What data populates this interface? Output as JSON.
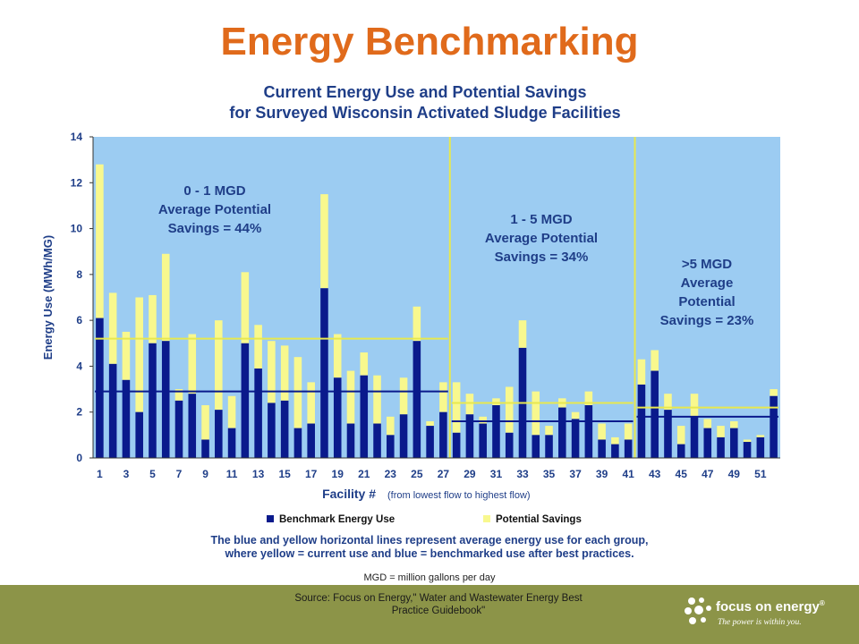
{
  "slide": {
    "title": "Energy Benchmarking",
    "note": "MGD = million gallons per day",
    "source_line1": "Source: Focus on Energy,\" Water and Wastewater Energy Best",
    "source_line2": "Practice Guidebook\"",
    "logo_text": "focus on energy",
    "logo_tm": "®",
    "logo_tagline": "The power is within you."
  },
  "colors": {
    "title": "#e06a1b",
    "chart_text": "#1f3e88",
    "plot_bg": "#9cccf2",
    "benchmark": "#0a1a8c",
    "savings": "#f8f88e",
    "divider": "#e8e84e",
    "footer": "#8c9448"
  },
  "chart_data": {
    "type": "bar",
    "stacked": true,
    "title_line1": "Current Energy Use and Potential Savings",
    "title_line2": "for Surveyed Wisconsin Activated Sludge Facilities",
    "xlabel": "Facility #",
    "xlabel_note": "(from lowest flow to highest flow)",
    "ylabel": "Energy Use (MWh/MG)",
    "ylim": [
      0,
      14
    ],
    "yticks": [
      "0",
      "2",
      "4",
      "6",
      "8",
      "10",
      "12",
      "14"
    ],
    "xtick_labels": [
      "1",
      "3",
      "5",
      "7",
      "9",
      "11",
      "13",
      "15",
      "17",
      "19",
      "21",
      "23",
      "25",
      "27",
      "29",
      "31",
      "33",
      "35",
      "37",
      "39",
      "41",
      "43",
      "45",
      "47",
      "49",
      "51"
    ],
    "categories": [
      1,
      2,
      3,
      4,
      5,
      6,
      7,
      8,
      9,
      10,
      11,
      12,
      13,
      14,
      15,
      16,
      17,
      18,
      19,
      20,
      21,
      22,
      23,
      24,
      25,
      26,
      27,
      28,
      29,
      30,
      31,
      32,
      33,
      34,
      35,
      36,
      37,
      38,
      39,
      40,
      41,
      42,
      43,
      44,
      45,
      46,
      47,
      48,
      49,
      50,
      51,
      52
    ],
    "series": [
      {
        "name": "Benchmark Energy Use",
        "color": "#0a1a8c",
        "values": [
          6.1,
          4.1,
          3.4,
          2.0,
          5.0,
          5.1,
          2.5,
          2.8,
          0.8,
          2.1,
          1.3,
          5.0,
          3.9,
          2.4,
          2.5,
          1.3,
          1.5,
          7.4,
          3.5,
          1.5,
          3.6,
          1.5,
          1.0,
          1.9,
          5.1,
          1.4,
          2.0,
          1.1,
          1.9,
          1.5,
          2.3,
          1.1,
          4.8,
          1.0,
          1.0,
          2.2,
          1.7,
          2.3,
          0.8,
          0.6,
          0.8,
          3.2,
          3.8,
          2.1,
          0.6,
          1.8,
          1.3,
          0.9,
          1.3,
          0.7,
          0.9,
          2.7
        ]
      },
      {
        "name": "Potential Savings",
        "color": "#f8f88e",
        "values": [
          6.7,
          3.1,
          2.1,
          5.0,
          2.1,
          3.8,
          0.5,
          2.6,
          1.5,
          3.9,
          1.4,
          3.1,
          1.9,
          2.7,
          2.4,
          3.1,
          1.8,
          4.1,
          1.9,
          2.3,
          1.0,
          2.1,
          0.8,
          1.6,
          1.5,
          0.2,
          1.3,
          2.2,
          0.9,
          0.3,
          0.3,
          2.0,
          1.2,
          1.9,
          0.4,
          0.4,
          0.3,
          0.6,
          0.7,
          0.3,
          0.7,
          1.1,
          0.9,
          0.7,
          0.8,
          1.0,
          0.4,
          0.5,
          0.3,
          0.1,
          0.1,
          0.3
        ]
      }
    ],
    "groups": [
      {
        "label_lines": [
          "0 - 1 MGD",
          "Average Potential",
          "Savings = 44%"
        ],
        "from": 1,
        "to": 27,
        "current_avg": 5.2,
        "benchmark_avg": 2.9
      },
      {
        "label_lines": [
          "1 - 5 MGD",
          "Average Potential",
          "Savings = 34%"
        ],
        "from": 28,
        "to": 41,
        "current_avg": 2.4,
        "benchmark_avg": 1.6
      },
      {
        "label_lines": [
          ">5 MGD",
          "Average",
          "Potential",
          "Savings = 23%"
        ],
        "from": 42,
        "to": 52,
        "current_avg": 2.2,
        "benchmark_avg": 1.8
      }
    ],
    "legend": [
      "Benchmark Energy Use",
      "Potential Savings"
    ],
    "caption_line1": "The blue and yellow horizontal lines represent average energy use for each group,",
    "caption_line2": "where yellow = current use and blue = benchmarked use after best practices.",
    "grid": false,
    "legend_position": "bottom"
  }
}
